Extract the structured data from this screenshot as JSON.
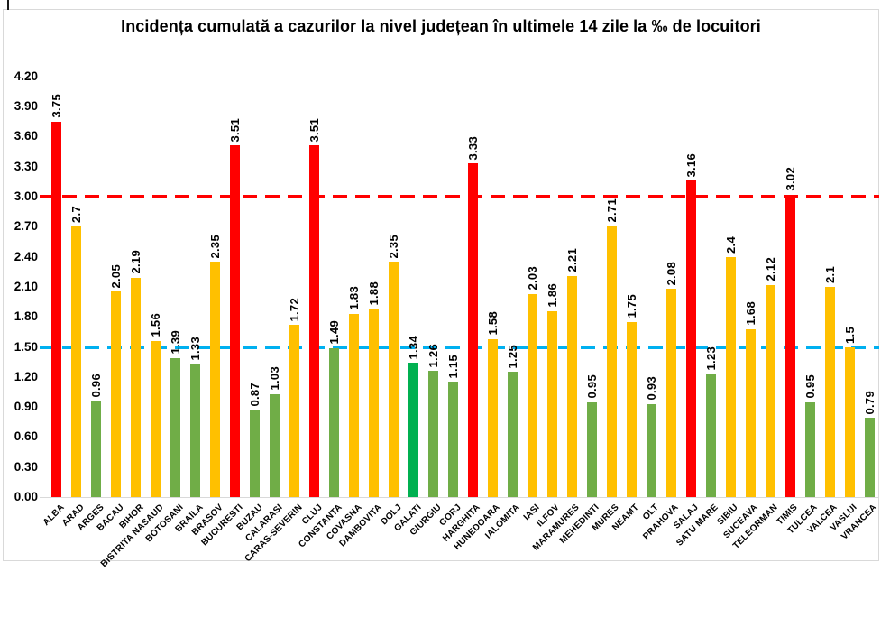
{
  "page": {
    "background": "#FFFFFF"
  },
  "chart_data": {
    "type": "bar",
    "title": "Incidența cumulată a cazurilor la nivel județean în ultimele 14 zile la ‰ de locuitori",
    "categories": [
      "ALBA",
      "ARAD",
      "ARGES",
      "BACAU",
      "BIHOR",
      "BISTRITA NASAUD",
      "BOTOSANI",
      "BRAILA",
      "BRASOV",
      "BUCURESTI",
      "BUZAU",
      "CALARASI",
      "CARAS-SEVERIN",
      "CLUJ",
      "CONSTANTA",
      "COVASNA",
      "DAMBOVITA",
      "DOLJ",
      "GALATI",
      "GIURGIU",
      "GORJ",
      "HARGHITA",
      "HUNEDOARA",
      "IALOMITA",
      "IASI",
      "ILFOV",
      "MARAMURES",
      "MEHEDINTI",
      "MURES",
      "NEAMT",
      "OLT",
      "PRAHOVA",
      "SALAJ",
      "SATU MARE",
      "SIBIU",
      "SUCEAVA",
      "TELEORMAN",
      "TIMIS",
      "TULCEA",
      "VALCEA",
      "VASLUI",
      "VRANCEA"
    ],
    "values": [
      3.75,
      2.7,
      0.96,
      2.05,
      2.19,
      1.56,
      1.39,
      1.33,
      2.35,
      3.51,
      0.87,
      1.03,
      1.72,
      3.51,
      1.49,
      1.83,
      1.88,
      2.35,
      1.34,
      1.26,
      1.15,
      3.33,
      1.58,
      1.25,
      2.03,
      1.86,
      2.21,
      0.95,
      2.71,
      1.75,
      0.93,
      2.08,
      3.16,
      1.23,
      2.4,
      1.68,
      2.12,
      3.02,
      0.95,
      2.1,
      1.5,
      0.79
    ],
    "value_labels": [
      "3.75",
      "2.7",
      "0.96",
      "2.05",
      "2.19",
      "1.56",
      "1.39",
      "1.33",
      "2.35",
      "3.51",
      "0.87",
      "1.03",
      "1.72",
      "3.51",
      "1.49",
      "1.83",
      "1.88",
      "2.35",
      "1.34",
      "1.26",
      "1.15",
      "3.33",
      "1.58",
      "1.25",
      "2.03",
      "1.86",
      "2.21",
      "0.95",
      "2.71",
      "1.75",
      "0.93",
      "2.08",
      "3.16",
      "1.23",
      "2.4",
      "1.68",
      "2.12",
      "3.02",
      "0.95",
      "2.1",
      "1.5",
      "0.79"
    ],
    "bar_color_keys": [
      "red",
      "yellow",
      "green",
      "yellow",
      "yellow",
      "yellow",
      "green",
      "green",
      "yellow",
      "red",
      "green",
      "green",
      "yellow",
      "red",
      "green",
      "yellow",
      "yellow",
      "yellow",
      "emerald",
      "green",
      "green",
      "red",
      "yellow",
      "green",
      "yellow",
      "yellow",
      "yellow",
      "green",
      "yellow",
      "yellow",
      "green",
      "yellow",
      "red",
      "green",
      "yellow",
      "yellow",
      "yellow",
      "red",
      "green",
      "yellow",
      "yellow",
      "green"
    ],
    "palette": {
      "red": "#FF0000",
      "yellow": "#FFC000",
      "green": "#70AD47",
      "emerald": "#00B050"
    },
    "y_ticks": [
      "0.00",
      "0.30",
      "0.60",
      "0.90",
      "1.20",
      "1.50",
      "1.80",
      "2.10",
      "2.40",
      "2.70",
      "3.00",
      "3.30",
      "3.60",
      "3.90",
      "4.20"
    ],
    "ylim": [
      0,
      4.2
    ],
    "y_tick_step": 0.3,
    "grid": "off",
    "legend": "none",
    "xlabel": "",
    "ylabel": "",
    "reference_lines": [
      {
        "name": "upper-threshold",
        "value": 3.0,
        "color": "#FF0000",
        "style": "dashed"
      },
      {
        "name": "lower-threshold",
        "value": 1.5,
        "color": "#00B0F0",
        "style": "dashed"
      }
    ],
    "frame_color": "#D9D9D9",
    "axis_line_color": "#D9D9D9",
    "text_color": "#000000"
  }
}
